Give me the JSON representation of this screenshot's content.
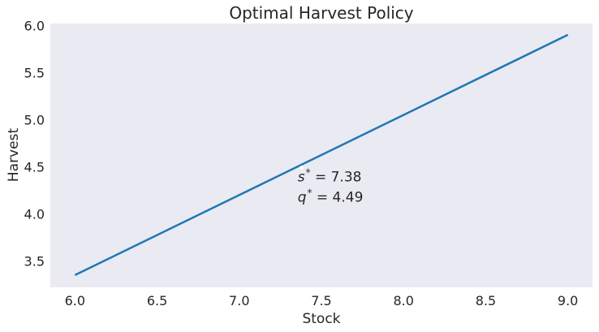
{
  "chart_data": {
    "type": "line",
    "title": "Optimal Harvest Policy",
    "xlabel": "Stock",
    "ylabel": "Harvest",
    "xlim": [
      5.85,
      9.15
    ],
    "ylim": [
      3.22,
      6.02
    ],
    "x_ticks": [
      6.0,
      6.5,
      7.0,
      7.5,
      8.0,
      8.5,
      9.0
    ],
    "x_tick_labels": [
      "6.0",
      "6.5",
      "7.0",
      "7.5",
      "8.0",
      "8.5",
      "9.0"
    ],
    "y_ticks": [
      3.5,
      4.0,
      4.5,
      5.0,
      5.5,
      6.0
    ],
    "y_tick_labels": [
      "3.5",
      "4.0",
      "4.5",
      "5.0",
      "5.5",
      "6.0"
    ],
    "grid": false,
    "series": [
      {
        "color": "#1f77b4",
        "x": [
          6.0,
          9.0
        ],
        "y": [
          3.35,
          5.9
        ]
      }
    ],
    "marker": {
      "x": 7.38,
      "y": 4.49,
      "color": "#ffffff"
    },
    "annotations": [
      {
        "symbol": "s",
        "superscript": "*",
        "text": " = 7.38",
        "x": 7.38,
        "y": 4.49
      },
      {
        "symbol": "q",
        "superscript": "*",
        "text": " = 4.49",
        "x": 7.38,
        "y": 4.49
      }
    ],
    "colors": {
      "plot_background": "#eaeaf2",
      "text": "#262626"
    }
  }
}
